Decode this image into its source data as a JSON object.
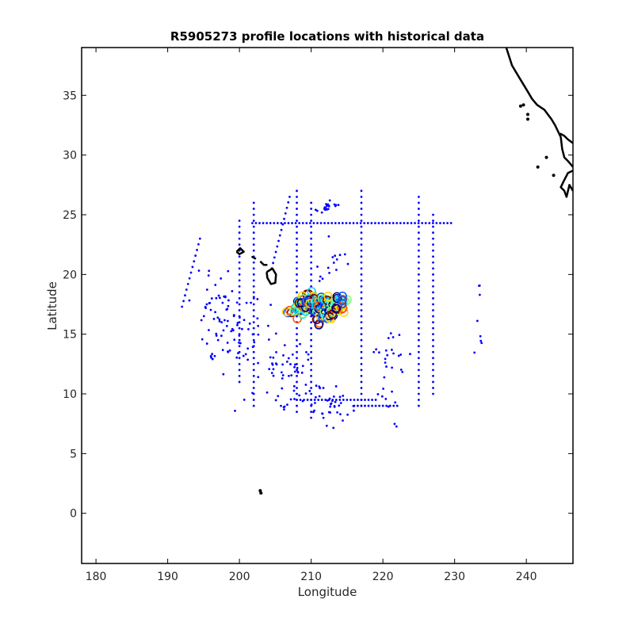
{
  "chart_data": {
    "type": "scatter",
    "title": "R5905273 profile locations with historical data",
    "xlabel": "Longitude",
    "ylabel": "Latitude",
    "xlim": [
      178,
      246.5
    ],
    "ylim": [
      -4.2,
      39
    ],
    "x_ticks": [
      180,
      190,
      200,
      210,
      220,
      230,
      240
    ],
    "y_ticks": [
      0,
      5,
      10,
      15,
      20,
      25,
      30,
      35
    ],
    "grid": false,
    "legend": "none",
    "colors": {
      "historical": "#0000ff",
      "coastline": "#000000",
      "profile_gradient": [
        "#00007f",
        "#0050ff",
        "#00d4ff",
        "#7fff7f",
        "#ffd400",
        "#ff5000",
        "#7f0000"
      ]
    },
    "historical_tracks": [
      {
        "kind": "line",
        "from": [
          201.8,
          24.3
        ],
        "to": [
          229.5,
          24.3
        ]
      },
      {
        "kind": "line",
        "from": [
          208.0,
          9.5
        ],
        "to": [
          219.0,
          9.5
        ]
      },
      {
        "kind": "line",
        "from": [
          216.0,
          9.0
        ],
        "to": [
          222.0,
          9.0
        ]
      },
      {
        "kind": "line",
        "from": [
          208.0,
          8.5
        ],
        "to": [
          208.0,
          27.0
        ]
      },
      {
        "kind": "line",
        "from": [
          217.0,
          9.0
        ],
        "to": [
          217.0,
          27.0
        ]
      },
      {
        "kind": "line",
        "from": [
          225.0,
          9.0
        ],
        "to": [
          225.0,
          26.5
        ]
      },
      {
        "kind": "line",
        "from": [
          227.0,
          10.0
        ],
        "to": [
          227.0,
          25.0
        ]
      },
      {
        "kind": "line",
        "from": [
          202.0,
          9.0
        ],
        "to": [
          202.0,
          26.0
        ]
      },
      {
        "kind": "line",
        "from": [
          210.0,
          8.0
        ],
        "to": [
          210.0,
          26.0
        ]
      },
      {
        "kind": "line",
        "from": [
          200.0,
          11.0
        ],
        "to": [
          200.0,
          24.5
        ]
      },
      {
        "kind": "line",
        "from": [
          192.0,
          17.3
        ],
        "to": [
          194.5,
          23.0
        ]
      },
      {
        "kind": "line",
        "from": [
          204.5,
          20.5
        ],
        "to": [
          207.0,
          26.5
        ]
      },
      {
        "kind": "cluster",
        "center": [
          200.0,
          14.5
        ],
        "spread": [
          3.5,
          4.0
        ],
        "count": 60
      },
      {
        "kind": "cluster",
        "center": [
          207.0,
          11.5
        ],
        "spread": [
          3.0,
          2.5
        ],
        "count": 50
      },
      {
        "kind": "cluster",
        "center": [
          212.5,
          9.0
        ],
        "spread": [
          3.5,
          1.5
        ],
        "count": 40
      },
      {
        "kind": "cluster",
        "center": [
          221.0,
          12.0
        ],
        "spread": [
          2.0,
          4.0
        ],
        "count": 30
      },
      {
        "kind": "cluster",
        "center": [
          196.0,
          17.0
        ],
        "spread": [
          3.0,
          4.5
        ],
        "count": 40
      },
      {
        "kind": "cluster",
        "center": [
          212.5,
          25.5
        ],
        "spread": [
          1.5,
          0.6
        ],
        "count": 20
      },
      {
        "kind": "cluster",
        "center": [
          233.5,
          16.0
        ],
        "spread": [
          0.6,
          3.5
        ],
        "count": 8
      },
      {
        "kind": "cluster",
        "center": [
          213.0,
          21.0
        ],
        "spread": [
          2.5,
          2.0
        ],
        "count": 15
      }
    ],
    "profile_locations": {
      "center": [
        211.0,
        17.0
      ],
      "spread": [
        3.5,
        1.4
      ],
      "count": 160
    },
    "coastlines": [
      [
        [
          237.2,
          39.0
        ],
        [
          238.0,
          37.5
        ],
        [
          239.0,
          36.5
        ],
        [
          240.0,
          35.5
        ],
        [
          240.8,
          34.7
        ],
        [
          241.5,
          34.2
        ],
        [
          242.5,
          33.8
        ],
        [
          243.5,
          33.0
        ],
        [
          244.0,
          32.5
        ],
        [
          244.4,
          32.0
        ],
        [
          244.8,
          31.5
        ],
        [
          245.0,
          30.5
        ],
        [
          245.3,
          29.8
        ],
        [
          245.8,
          29.5
        ],
        [
          246.5,
          29.0
        ]
      ],
      [
        [
          246.5,
          28.7
        ],
        [
          245.8,
          28.5
        ],
        [
          245.2,
          27.8
        ],
        [
          244.8,
          27.3
        ],
        [
          245.3,
          27.0
        ],
        [
          245.6,
          26.5
        ],
        [
          246.0,
          27.5
        ],
        [
          246.5,
          27.0
        ]
      ],
      [
        [
          244.7,
          31.8
        ],
        [
          245.3,
          31.6
        ],
        [
          245.8,
          31.3
        ],
        [
          246.5,
          31.0
        ]
      ],
      [
        [
          203.8,
          20.2
        ],
        [
          204.6,
          20.5
        ],
        [
          205.1,
          20.0
        ],
        [
          205.0,
          19.3
        ],
        [
          204.4,
          19.2
        ],
        [
          203.9,
          19.7
        ],
        [
          203.8,
          20.2
        ]
      ],
      [
        [
          199.6,
          21.9
        ],
        [
          200.1,
          22.2
        ],
        [
          200.6,
          21.9
        ],
        [
          200.0,
          21.7
        ],
        [
          199.6,
          21.9
        ]
      ],
      [
        [
          201.7,
          21.5
        ],
        [
          202.3,
          21.3
        ]
      ],
      [
        [
          202.9,
          21.1
        ],
        [
          203.4,
          20.8
        ],
        [
          203.9,
          20.8
        ]
      ]
    ],
    "coastline_dots": [
      [
        241.6,
        29.0
      ],
      [
        243.8,
        28.3
      ],
      [
        239.2,
        34.1
      ],
      [
        239.6,
        34.2
      ],
      [
        240.2,
        33.4
      ],
      [
        240.2,
        33.0
      ],
      [
        242.8,
        29.8
      ],
      [
        203.0,
        1.7
      ],
      [
        202.9,
        1.9
      ]
    ]
  }
}
